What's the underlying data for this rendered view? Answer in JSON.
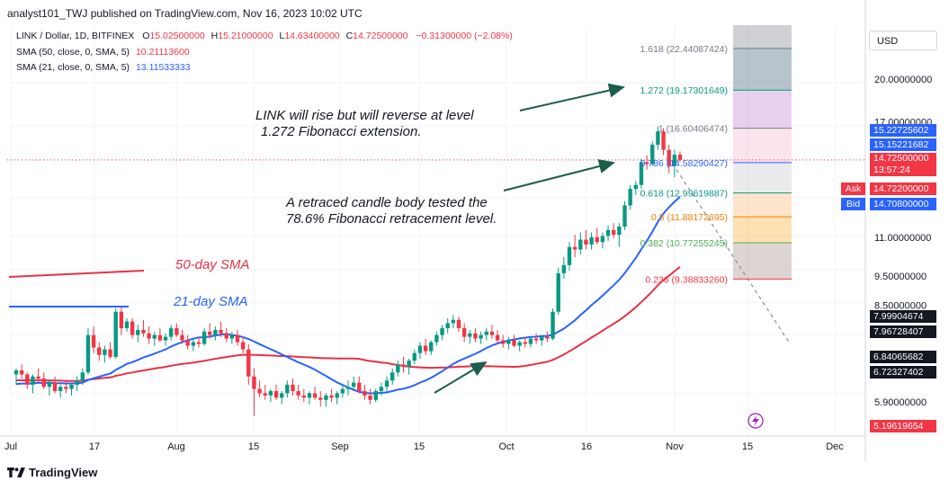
{
  "header": {
    "publish_line": "analyst101_TWJ published on TradingView.com, Nov 16, 2023 10:02 UTC"
  },
  "legend": {
    "symbol": "LINK / Dollar, 1D, BITFINEX",
    "open_key": "O",
    "open": "15.02500000",
    "high_key": "H",
    "high": "15.21000000",
    "low_key": "L",
    "low": "14.63400000",
    "close_key": "C",
    "close": "14.72500000",
    "change": "−0.31300000 (−2.08%)",
    "sma50_label": "SMA (50, close, 0, SMA, 5)",
    "sma50_value": "10.21113600",
    "sma21_label": "SMA (21, close, 0, SMA, 5)",
    "sma21_value": "13.11533333"
  },
  "annotations": {
    "line1": "LINK will rise but will reverse at level",
    "line2": "1.272 Fibonacci extension.",
    "line3": "A retraced candle body tested the",
    "line4": "78.6% Fibonacci retracement level.",
    "sma50": "50-day SMA",
    "sma21": "21-day SMA"
  },
  "axis": {
    "currency": "USD",
    "price_ticks": [
      "20.00000000",
      "17.00000000",
      "11.00000000",
      "9.50000000",
      "8.50000000",
      "5.90000000"
    ],
    "date_ticks": [
      "Jul",
      "17",
      "Aug",
      "15",
      "Sep",
      "15",
      "Oct",
      "16",
      "Nov",
      "15",
      "Dec"
    ]
  },
  "price_tags": {
    "t1": "15.22725602",
    "t2": "15.15221682",
    "last": "14.72500000",
    "countdown": "13:57:24",
    "ask_label": "Ask",
    "ask": "14.72200000",
    "bid_label": "Bid",
    "bid": "14.70800000",
    "t3": "7.99904674",
    "t4": "7.96728407",
    "t5": "6.84065682",
    "t6": "6.72327402",
    "t7": "5.19619654"
  },
  "fib_labels": [
    {
      "ratio": "1.618",
      "value": "(22.44087424)"
    },
    {
      "ratio": "1.272",
      "value": "(19.17301649)"
    },
    {
      "ratio": "1",
      "value": "(16.60406474)"
    },
    {
      "ratio": "0.786",
      "value": "(14.58290427)"
    },
    {
      "ratio": "0.618",
      "value": "(12.99619887)"
    },
    {
      "ratio": "0.5",
      "value": "(11.88172695)"
    },
    {
      "ratio": "0.382",
      "value": "(10.77255245)"
    },
    {
      "ratio": "0.236",
      "value": "(9.38833260)"
    }
  ],
  "footer": {
    "brand": "TradingView"
  },
  "colors": {
    "up": "#089981",
    "down": "#f23645",
    "sma21": "#2962ff",
    "sma50": "#e53245",
    "fib_1618": "#787b86",
    "fib_1272": "#089981",
    "fib_1": "#787b86",
    "fib_0786": "#2962ff",
    "fib_0618": "#089981",
    "fib_05": "#f57c00",
    "fib_0382": "#4caf50",
    "fib_0236": "#f23645"
  },
  "chart_data": {
    "type": "candlestick",
    "symbol": "LINK / Dollar",
    "interval": "1D",
    "exchange": "BITFINEX",
    "x_range": [
      "Jul",
      "Dec"
    ],
    "y_range": [
      5.19,
      24.5
    ],
    "y_scale": "log",
    "grid": true,
    "last_close": 14.725,
    "candles": [
      [
        6.55,
        6.7,
        6.3,
        6.65
      ],
      [
        6.65,
        6.8,
        6.45,
        6.55
      ],
      [
        6.55,
        6.6,
        6.2,
        6.3
      ],
      [
        6.3,
        6.55,
        6.1,
        6.5
      ],
      [
        6.5,
        6.7,
        6.35,
        6.45
      ],
      [
        6.45,
        6.6,
        6.2,
        6.25
      ],
      [
        6.25,
        6.4,
        6.05,
        6.35
      ],
      [
        6.35,
        6.5,
        6.1,
        6.15
      ],
      [
        6.15,
        6.3,
        6.0,
        6.25
      ],
      [
        6.25,
        6.4,
        6.1,
        6.2
      ],
      [
        6.2,
        6.35,
        6.05,
        6.3
      ],
      [
        6.3,
        6.5,
        6.15,
        6.4
      ],
      [
        6.4,
        6.7,
        6.3,
        6.6
      ],
      [
        6.6,
        7.8,
        6.55,
        7.6
      ],
      [
        7.6,
        7.85,
        7.1,
        7.25
      ],
      [
        7.25,
        7.4,
        6.9,
        7.05
      ],
      [
        7.05,
        7.3,
        6.85,
        7.2
      ],
      [
        7.2,
        7.4,
        6.95,
        7.0
      ],
      [
        7.0,
        8.4,
        6.95,
        8.3
      ],
      [
        8.3,
        8.45,
        7.6,
        7.8
      ],
      [
        7.8,
        8.1,
        7.7,
        8.0
      ],
      [
        8.0,
        8.1,
        7.5,
        7.6
      ],
      [
        7.6,
        7.9,
        7.4,
        7.75
      ],
      [
        7.75,
        8.05,
        7.55,
        7.65
      ],
      [
        7.65,
        7.85,
        7.35,
        7.5
      ],
      [
        7.5,
        7.7,
        7.3,
        7.6
      ],
      [
        7.6,
        7.8,
        7.4,
        7.45
      ],
      [
        7.45,
        7.65,
        7.3,
        7.55
      ],
      [
        7.55,
        7.9,
        7.45,
        7.8
      ],
      [
        7.8,
        7.95,
        7.55,
        7.6
      ],
      [
        7.6,
        7.75,
        7.35,
        7.45
      ],
      [
        7.45,
        7.6,
        7.2,
        7.3
      ],
      [
        7.3,
        7.5,
        7.15,
        7.4
      ],
      [
        7.4,
        7.55,
        7.25,
        7.35
      ],
      [
        7.35,
        7.8,
        7.3,
        7.7
      ],
      [
        7.7,
        7.95,
        7.5,
        7.6
      ],
      [
        7.6,
        7.85,
        7.45,
        7.75
      ],
      [
        7.75,
        8.0,
        7.55,
        7.65
      ],
      [
        7.65,
        7.8,
        7.4,
        7.5
      ],
      [
        7.5,
        7.7,
        7.35,
        7.6
      ],
      [
        7.6,
        7.75,
        7.3,
        7.4
      ],
      [
        7.4,
        7.55,
        7.1,
        7.2
      ],
      [
        7.2,
        7.35,
        6.3,
        6.5
      ],
      [
        6.5,
        6.7,
        5.6,
        6.2
      ],
      [
        6.2,
        6.4,
        6.0,
        6.1
      ],
      [
        6.1,
        6.3,
        5.95,
        6.05
      ],
      [
        6.05,
        6.2,
        5.9,
        6.15
      ],
      [
        6.15,
        6.3,
        5.95,
        6.0
      ],
      [
        6.0,
        6.15,
        5.85,
        6.1
      ],
      [
        6.1,
        6.4,
        6.0,
        6.3
      ],
      [
        6.3,
        6.45,
        6.05,
        6.15
      ],
      [
        6.15,
        6.3,
        5.95,
        6.05
      ],
      [
        6.05,
        6.2,
        5.9,
        6.0
      ],
      [
        6.0,
        6.15,
        5.85,
        6.1
      ],
      [
        6.1,
        6.25,
        5.95,
        6.0
      ],
      [
        6.0,
        6.15,
        5.8,
        5.95
      ],
      [
        5.95,
        6.1,
        5.8,
        6.05
      ],
      [
        6.05,
        6.2,
        5.9,
        6.0
      ],
      [
        6.0,
        6.15,
        5.85,
        6.1
      ],
      [
        6.1,
        6.3,
        6.0,
        6.2
      ],
      [
        6.2,
        6.4,
        6.05,
        6.25
      ],
      [
        6.25,
        6.5,
        6.15,
        6.35
      ],
      [
        6.35,
        6.5,
        6.1,
        6.15
      ],
      [
        6.15,
        6.3,
        5.95,
        6.05
      ],
      [
        6.05,
        6.2,
        5.85,
        5.95
      ],
      [
        5.95,
        6.2,
        5.9,
        6.15
      ],
      [
        6.15,
        6.35,
        6.05,
        6.25
      ],
      [
        6.25,
        6.5,
        6.15,
        6.4
      ],
      [
        6.4,
        6.7,
        6.3,
        6.6
      ],
      [
        6.6,
        6.9,
        6.5,
        6.8
      ],
      [
        6.8,
        7.0,
        6.6,
        6.75
      ],
      [
        6.75,
        6.95,
        6.55,
        6.9
      ],
      [
        6.9,
        7.2,
        6.8,
        7.1
      ],
      [
        7.1,
        7.4,
        6.95,
        7.3
      ],
      [
        7.3,
        7.5,
        7.05,
        7.15
      ],
      [
        7.15,
        7.45,
        7.05,
        7.4
      ],
      [
        7.4,
        7.7,
        7.3,
        7.6
      ],
      [
        7.6,
        7.9,
        7.45,
        7.8
      ],
      [
        7.8,
        8.1,
        7.65,
        7.95
      ],
      [
        7.95,
        8.2,
        7.8,
        8.05
      ],
      [
        8.05,
        8.15,
        7.7,
        7.8
      ],
      [
        7.8,
        7.95,
        7.4,
        7.55
      ],
      [
        7.55,
        7.75,
        7.35,
        7.65
      ],
      [
        7.65,
        7.8,
        7.4,
        7.5
      ],
      [
        7.5,
        7.7,
        7.35,
        7.6
      ],
      [
        7.6,
        7.8,
        7.45,
        7.7
      ],
      [
        7.7,
        7.9,
        7.5,
        7.6
      ],
      [
        7.6,
        7.75,
        7.35,
        7.45
      ],
      [
        7.45,
        7.6,
        7.25,
        7.35
      ],
      [
        7.35,
        7.55,
        7.2,
        7.45
      ],
      [
        7.45,
        7.6,
        7.25,
        7.3
      ],
      [
        7.3,
        7.45,
        7.15,
        7.4
      ],
      [
        7.4,
        7.55,
        7.25,
        7.35
      ],
      [
        7.35,
        7.55,
        7.25,
        7.5
      ],
      [
        7.5,
        7.65,
        7.35,
        7.45
      ],
      [
        7.45,
        7.6,
        7.3,
        7.55
      ],
      [
        7.55,
        7.7,
        7.4,
        7.5
      ],
      [
        7.5,
        8.4,
        7.45,
        8.3
      ],
      [
        8.3,
        9.8,
        8.2,
        9.6
      ],
      [
        9.6,
        10.2,
        9.4,
        9.9
      ],
      [
        9.9,
        10.8,
        9.7,
        10.6
      ],
      [
        10.6,
        11.1,
        10.2,
        10.5
      ],
      [
        10.5,
        11.2,
        10.3,
        10.9
      ],
      [
        10.9,
        11.3,
        10.5,
        10.7
      ],
      [
        10.7,
        11.2,
        10.5,
        11.0
      ],
      [
        11.0,
        11.4,
        10.7,
        10.8
      ],
      [
        10.8,
        11.2,
        10.55,
        11.05
      ],
      [
        11.05,
        11.5,
        10.85,
        11.3
      ],
      [
        11.3,
        11.6,
        10.95,
        11.1
      ],
      [
        11.1,
        11.6,
        10.6,
        11.45
      ],
      [
        11.45,
        12.6,
        11.3,
        12.4
      ],
      [
        12.4,
        13.4,
        12.2,
        13.2
      ],
      [
        13.2,
        13.6,
        12.9,
        13.4
      ],
      [
        13.4,
        14.8,
        13.2,
        14.6
      ],
      [
        14.6,
        15.0,
        14.2,
        14.5
      ],
      [
        14.5,
        15.8,
        14.4,
        15.6
      ],
      [
        15.6,
        16.7,
        15.3,
        16.4
      ],
      [
        16.4,
        16.6,
        15.0,
        15.3
      ],
      [
        15.3,
        15.6,
        14.0,
        14.4
      ],
      [
        14.4,
        15.3,
        13.8,
        15.02
      ],
      [
        15.025,
        15.21,
        14.634,
        14.725
      ]
    ]
  }
}
